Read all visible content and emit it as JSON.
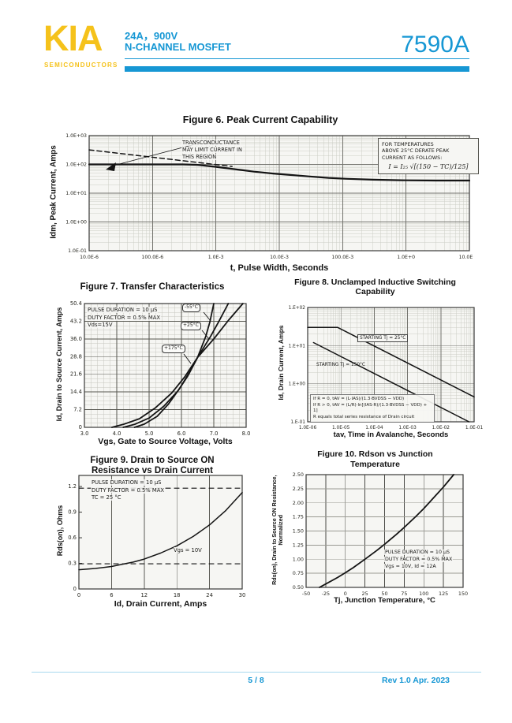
{
  "header": {
    "logo_text": "KIA",
    "logo_subtext": "SEMICONDUCTORS",
    "product_line1": "24A，900V",
    "product_line2": "N-CHANNEL MOSFET",
    "part_number": "7590A",
    "colors": {
      "accent_blue": "#1697D4",
      "logo_yellow": "#F5C21B"
    }
  },
  "footer": {
    "page_indicator": "5 / 8",
    "revision": "Rev 1.0 Apr. 2023"
  },
  "chart_data": [
    {
      "type": "line",
      "title": "Figure 6. Peak Current Capability",
      "xlabel": "t, Pulse Width, Seconds",
      "ylabel": "Idm, Peak Current, Amps",
      "xscale": "log",
      "yscale": "log",
      "xlim": [
        1e-05,
        10
      ],
      "ylim": [
        0.1,
        1000
      ],
      "grid": "on",
      "legend": "none",
      "xticks": [
        {
          "v": 1e-05,
          "label": "10.0E-6"
        },
        {
          "v": 0.0001,
          "label": "100.0E-6"
        },
        {
          "v": 0.001,
          "label": "1.0E-3"
        },
        {
          "v": 0.01,
          "label": "10.0E-3"
        },
        {
          "v": 0.1,
          "label": "100.0E-3"
        },
        {
          "v": 1,
          "label": "1.0E+0"
        },
        {
          "v": 10,
          "label": "10.0E+0"
        }
      ],
      "yticks": [
        {
          "v": 1000,
          "label": "1.0E+03"
        },
        {
          "v": 100,
          "label": "1.0E+02"
        },
        {
          "v": 10,
          "label": "1.0E+01"
        },
        {
          "v": 1,
          "label": "1.0E+00"
        },
        {
          "v": 0.1,
          "label": "1.0E-01"
        }
      ],
      "series": [
        {
          "name": "Peak current capability",
          "dash": null,
          "points": [
            [
              1e-05,
              100
            ],
            [
              0.0003,
              100
            ],
            [
              0.0005,
              97
            ],
            [
              0.001,
              82
            ],
            [
              0.002,
              68
            ],
            [
              0.004,
              56
            ],
            [
              0.008,
              48
            ],
            [
              0.015,
              43
            ],
            [
              0.03,
              38
            ],
            [
              0.06,
              34
            ],
            [
              0.12,
              31.5
            ],
            [
              0.3,
              29.5
            ],
            [
              0.6,
              28.5
            ],
            [
              1,
              28
            ],
            [
              3,
              27.5
            ],
            [
              10,
              27.5
            ]
          ]
        },
        {
          "name": "Transconductance limit boundary",
          "dash": "6 4",
          "points": [
            [
              1e-05,
              320
            ],
            [
              0.0018,
              85
            ]
          ]
        }
      ],
      "annotation_lines": [
        "TRANSCONDUCTANCE",
        "MAY LIMIT CURRENT IN",
        "THIS REGION"
      ],
      "note_lines": [
        "FOR TEMPERATURES",
        "ABOVE 25°C DERATE PEAK",
        "CURRENT AS FOLLOWS:"
      ],
      "formula": "I = I₂₅ √[(150 − TC)/125]"
    },
    {
      "type": "line",
      "title": "Figure 7. Transfer Characteristics",
      "xlabel": "Vgs, Gate to Source Voltage, Volts",
      "ylabel": "Id, Drain to Source Current, Amps",
      "xscale": "linear",
      "yscale": "linear",
      "xlim": [
        3,
        8
      ],
      "ylim": [
        0,
        50.4
      ],
      "grid": "on",
      "legend": "callouts",
      "xticks": [
        {
          "v": 3,
          "label": "3.0"
        },
        {
          "v": 4,
          "label": "4.0"
        },
        {
          "v": 5,
          "label": "5.0"
        },
        {
          "v": 6,
          "label": "6.0"
        },
        {
          "v": 7,
          "label": "7.0"
        },
        {
          "v": 8,
          "label": "8.0"
        }
      ],
      "yticks": [
        {
          "v": 0,
          "label": "0"
        },
        {
          "v": 7.2,
          "label": "7.2"
        },
        {
          "v": 14.4,
          "label": "14.4"
        },
        {
          "v": 21.6,
          "label": "21.6"
        },
        {
          "v": 28.8,
          "label": "28.8"
        },
        {
          "v": 36,
          "label": "36.0"
        },
        {
          "v": 43.2,
          "label": "43.2"
        },
        {
          "v": 50.4,
          "label": "50.4"
        }
      ],
      "conditions": [
        "PULSE DURATION = 10 μS",
        "DUTY FACTOR = 0.5% MAX",
        "Vds=15V"
      ],
      "curve_labels": [
        "-55°C",
        "+25°C",
        "+175°C"
      ],
      "series": [
        {
          "name": "-55°C",
          "dash": null,
          "points": [
            [
              4.55,
              0
            ],
            [
              4.85,
              1.3
            ],
            [
              5.25,
              4.5
            ],
            [
              5.6,
              9.5
            ],
            [
              5.95,
              16
            ],
            [
              6.25,
              22.5
            ],
            [
              6.5,
              28.5
            ],
            [
              6.75,
              37
            ],
            [
              6.88,
              43
            ],
            [
              7.0,
              50.4
            ]
          ]
        },
        {
          "name": "+25°C",
          "dash": null,
          "points": [
            [
              4.2,
              0
            ],
            [
              4.55,
              1.2
            ],
            [
              5.0,
              3.8
            ],
            [
              5.45,
              8.5
            ],
            [
              5.9,
              15
            ],
            [
              6.2,
              21
            ],
            [
              6.5,
              28.5
            ],
            [
              6.9,
              37
            ],
            [
              7.15,
              43
            ],
            [
              7.45,
              50.4
            ]
          ]
        },
        {
          "name": "+175°C",
          "dash": null,
          "points": [
            [
              3.85,
              0
            ],
            [
              4.2,
              1.2
            ],
            [
              4.7,
              3.5
            ],
            [
              5.2,
              8
            ],
            [
              5.7,
              14
            ],
            [
              6.1,
              20.5
            ],
            [
              6.5,
              28.5
            ],
            [
              7.0,
              36
            ],
            [
              7.45,
              43.5
            ],
            [
              7.9,
              50.4
            ]
          ]
        }
      ]
    },
    {
      "type": "line",
      "title_lines": [
        "Figure 8. Unclamped Inductive Switching",
        "Capability"
      ],
      "xlabel": "tav, Time in Avalanche, Seconds",
      "ylabel": "Id, Drain Current, Amps",
      "xscale": "log",
      "yscale": "log",
      "xlim": [
        1e-06,
        0.1
      ],
      "ylim": [
        0.1,
        100
      ],
      "grid": "on",
      "legend": "inline-labels",
      "xticks": [
        {
          "v": 1e-06,
          "label": "1.0E-06"
        },
        {
          "v": 1e-05,
          "label": "1.0E-05"
        },
        {
          "v": 0.0001,
          "label": "1.0E-04"
        },
        {
          "v": 0.001,
          "label": "1.0E-03"
        },
        {
          "v": 0.01,
          "label": "1.0E-02"
        },
        {
          "v": 0.1,
          "label": "1.0E-01"
        }
      ],
      "yticks": [
        {
          "v": 100,
          "label": "1.E+02"
        },
        {
          "v": 10,
          "label": "1.E+01"
        },
        {
          "v": 1,
          "label": "1.E+00"
        },
        {
          "v": 0.1,
          "label": "1.E-01"
        }
      ],
      "label_tj25": "STARTING Tj = 25°C",
      "label_tj150": "STARTING Tj = 150°C",
      "note_lines": [
        "If R = 0, tAV = (L·IAS)/(1.3·BVDSS − VDD)",
        "If R > 0, tAV = (L/R)·ln[(IAS·R)/(1.3·BVDSS − VDD) + 1]",
        "R equals total series resistance of Drain circuit"
      ],
      "series": [
        {
          "name": "Starting Tj = 25°C",
          "dash": null,
          "points": [
            [
              1e-06,
              30
            ],
            [
              8e-06,
              30
            ],
            [
              0.1,
              0.45
            ]
          ]
        },
        {
          "name": "Starting Tj = 150°C",
          "dash": null,
          "points": [
            [
              1.5e-06,
              12
            ],
            [
              0.07,
              0.1
            ]
          ]
        }
      ]
    },
    {
      "type": "line",
      "title_lines": [
        "Figure 9. Drain to Source ON",
        "Resistance vs Drain Current"
      ],
      "xlabel": "Id, Drain Current, Amps",
      "ylabel": "Rds(on),  Ohms",
      "xscale": "linear",
      "yscale": "linear",
      "xlim": [
        0,
        30
      ],
      "ylim": [
        0,
        1.33
      ],
      "grid": "x-major",
      "legend": "none",
      "xticks": [
        {
          "v": 0,
          "label": "0"
        },
        {
          "v": 6,
          "label": "6"
        },
        {
          "v": 12,
          "label": "12"
        },
        {
          "v": 18,
          "label": "18"
        },
        {
          "v": 24,
          "label": "24"
        },
        {
          "v": 30,
          "label": "30"
        }
      ],
      "yticks": [
        {
          "v": 0,
          "label": "0"
        },
        {
          "v": 0.3,
          "label": "0.3"
        },
        {
          "v": 0.6,
          "label": "0.6"
        },
        {
          "v": 0.9,
          "label": "0.9"
        },
        {
          "v": 1.2,
          "label": "1.2"
        }
      ],
      "conditions": [
        "PULSE DURATION = 10 μS",
        "DUTY FACTOR = 0.5% MAX",
        "TC = 25 °C"
      ],
      "vgs_label": "Vgs = 10V",
      "series": [
        {
          "name": "Rds(on) vs Id (Vgs = 10V)",
          "dash": null,
          "points": [
            [
              0,
              0.225
            ],
            [
              3,
              0.24
            ],
            [
              6,
              0.263
            ],
            [
              8,
              0.29
            ],
            [
              10,
              0.315
            ],
            [
              12,
              0.35
            ],
            [
              15,
              0.42
            ],
            [
              18,
              0.505
            ],
            [
              21,
              0.615
            ],
            [
              24,
              0.75
            ],
            [
              27,
              0.92
            ],
            [
              30,
              1.13
            ]
          ]
        },
        {
          "name": "Upper reference (dashed)",
          "dash": "6 5",
          "points": [
            [
              0,
              1.18
            ],
            [
              30,
              1.18
            ]
          ]
        },
        {
          "name": "Lower reference (dashed)",
          "dash": "6 5",
          "points": [
            [
              0,
              0.295
            ],
            [
              30,
              0.295
            ]
          ]
        }
      ]
    },
    {
      "type": "line",
      "title_lines": [
        "Figure 10. Rdson vs Junction",
        "Temperature"
      ],
      "xlabel": "Tj, Junction Temperature, °C",
      "ylabel_lines": [
        "Rds(on), Drain to Source ON Resistance,",
        "Normalized"
      ],
      "xscale": "linear",
      "yscale": "linear",
      "xlim": [
        -50,
        150
      ],
      "ylim": [
        0.5,
        2.5
      ],
      "grid": "on",
      "legend": "none",
      "xticks": [
        {
          "v": -50,
          "label": "-50"
        },
        {
          "v": -25,
          "label": "-25"
        },
        {
          "v": 0,
          "label": "0"
        },
        {
          "v": 25,
          "label": "25"
        },
        {
          "v": 50,
          "label": "50"
        },
        {
          "v": 75,
          "label": "75"
        },
        {
          "v": 100,
          "label": "100"
        },
        {
          "v": 125,
          "label": "125"
        },
        {
          "v": 150,
          "label": "150"
        }
      ],
      "yticks": [
        {
          "v": 0.5,
          "label": "0.50"
        },
        {
          "v": 0.75,
          "label": "0.75"
        },
        {
          "v": 1,
          "label": "1.00"
        },
        {
          "v": 1.25,
          "label": "1.25"
        },
        {
          "v": 1.5,
          "label": "1.50"
        },
        {
          "v": 1.75,
          "label": "1.75"
        },
        {
          "v": 2,
          "label": "2.00"
        },
        {
          "v": 2.25,
          "label": "2.25"
        },
        {
          "v": 2.5,
          "label": "2.50"
        }
      ],
      "conditions": [
        "PULSE DURATION = 10 μS",
        "DUTY FACTOR = 0.5% MAX",
        "Vgs = 10V, Id = 12A"
      ],
      "series": [
        {
          "name": "Normalized Rds(on)",
          "dash": null,
          "points": [
            [
              -33,
              0.5
            ],
            [
              -25,
              0.56
            ],
            [
              -10,
              0.675
            ],
            [
              0,
              0.76
            ],
            [
              10,
              0.85
            ],
            [
              25,
              1.0
            ],
            [
              40,
              1.155
            ],
            [
              50,
              1.265
            ],
            [
              65,
              1.44
            ],
            [
              75,
              1.565
            ],
            [
              90,
              1.76
            ],
            [
              100,
              1.9
            ],
            [
              115,
              2.13
            ],
            [
              125,
              2.28
            ],
            [
              138,
              2.5
            ]
          ]
        }
      ]
    }
  ]
}
